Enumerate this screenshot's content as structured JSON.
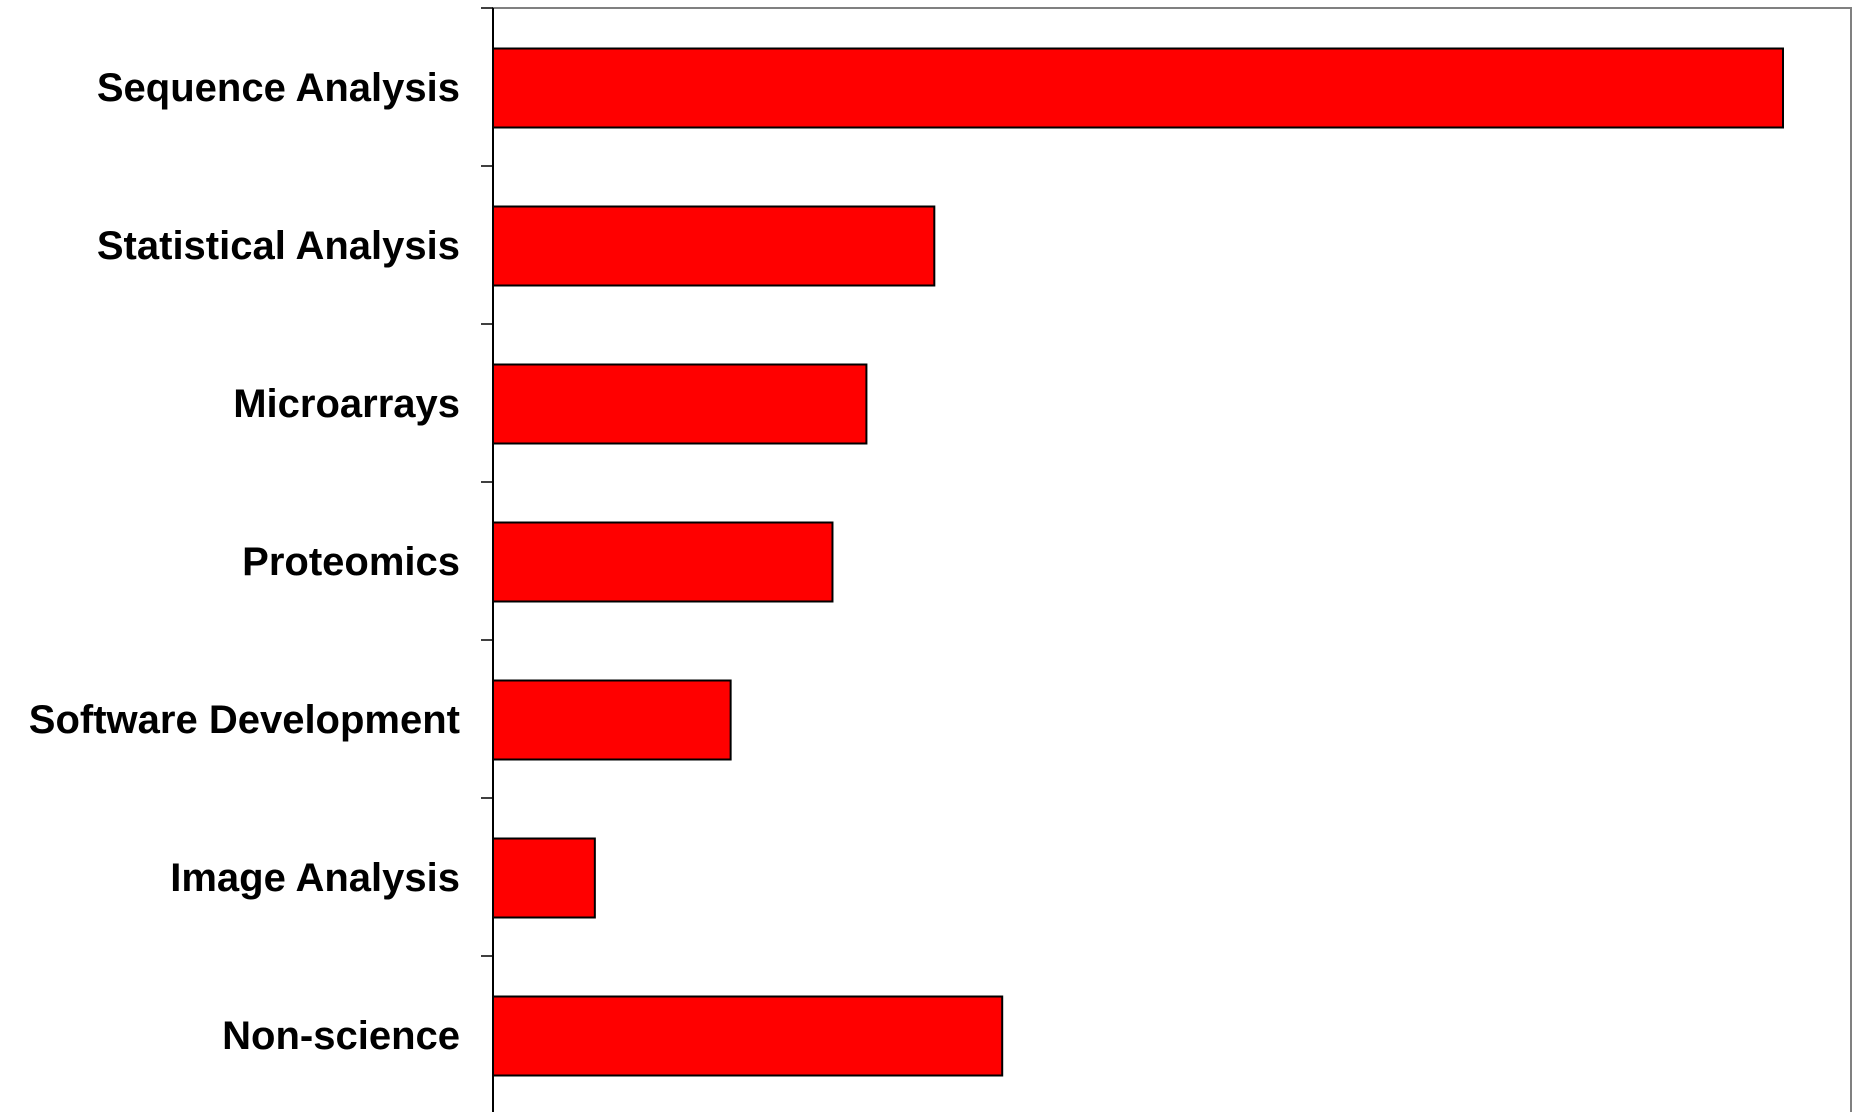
{
  "chart_data": {
    "type": "bar",
    "orientation": "horizontal",
    "categories": [
      "Sequence Analysis",
      "Statistical Analysis",
      "Microarrays",
      "Proteomics",
      "Software Development",
      "Image Analysis",
      "Non-science"
    ],
    "values": [
      57,
      19.5,
      16.5,
      15,
      10.5,
      4.5,
      22.5
    ],
    "xlim": [
      0,
      60
    ],
    "title": "",
    "xlabel": "",
    "ylabel": "",
    "grid": false,
    "legend": "none",
    "x_tick_labels_shown": false
  },
  "colors": {
    "bar_fill": "#ff0000",
    "bar_stroke": "#000000",
    "plot_border": "#808080",
    "axis": "#000000"
  }
}
